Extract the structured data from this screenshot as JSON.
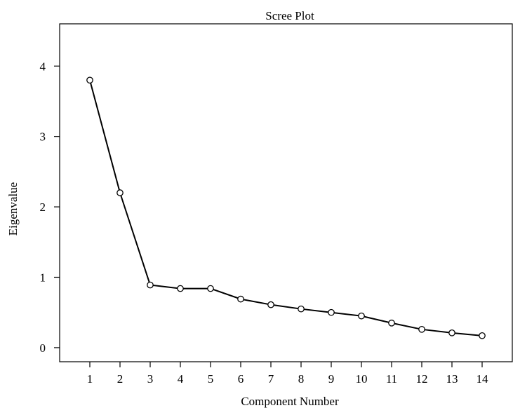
{
  "chart_data": {
    "type": "line",
    "title": "Scree Plot",
    "xlabel": "Component Number",
    "ylabel": "Eigenvalue",
    "x": [
      1,
      2,
      3,
      4,
      5,
      6,
      7,
      8,
      9,
      10,
      11,
      12,
      13,
      14
    ],
    "series": [
      {
        "values": [
          3.8,
          2.2,
          0.89,
          0.84,
          0.84,
          0.69,
          0.61,
          0.55,
          0.5,
          0.45,
          0.35,
          0.26,
          0.21,
          0.17
        ]
      }
    ],
    "xticks": [
      "1",
      "2",
      "3",
      "4",
      "5",
      "6",
      "7",
      "8",
      "9",
      "10",
      "11",
      "12",
      "13",
      "14"
    ],
    "yticks": [
      "0",
      "1",
      "2",
      "3",
      "4"
    ],
    "xlim": [
      0,
      15
    ],
    "ylim": [
      -0.2,
      4.6
    ],
    "grid": false,
    "marker": "open-circle",
    "line_color": "#000000"
  }
}
